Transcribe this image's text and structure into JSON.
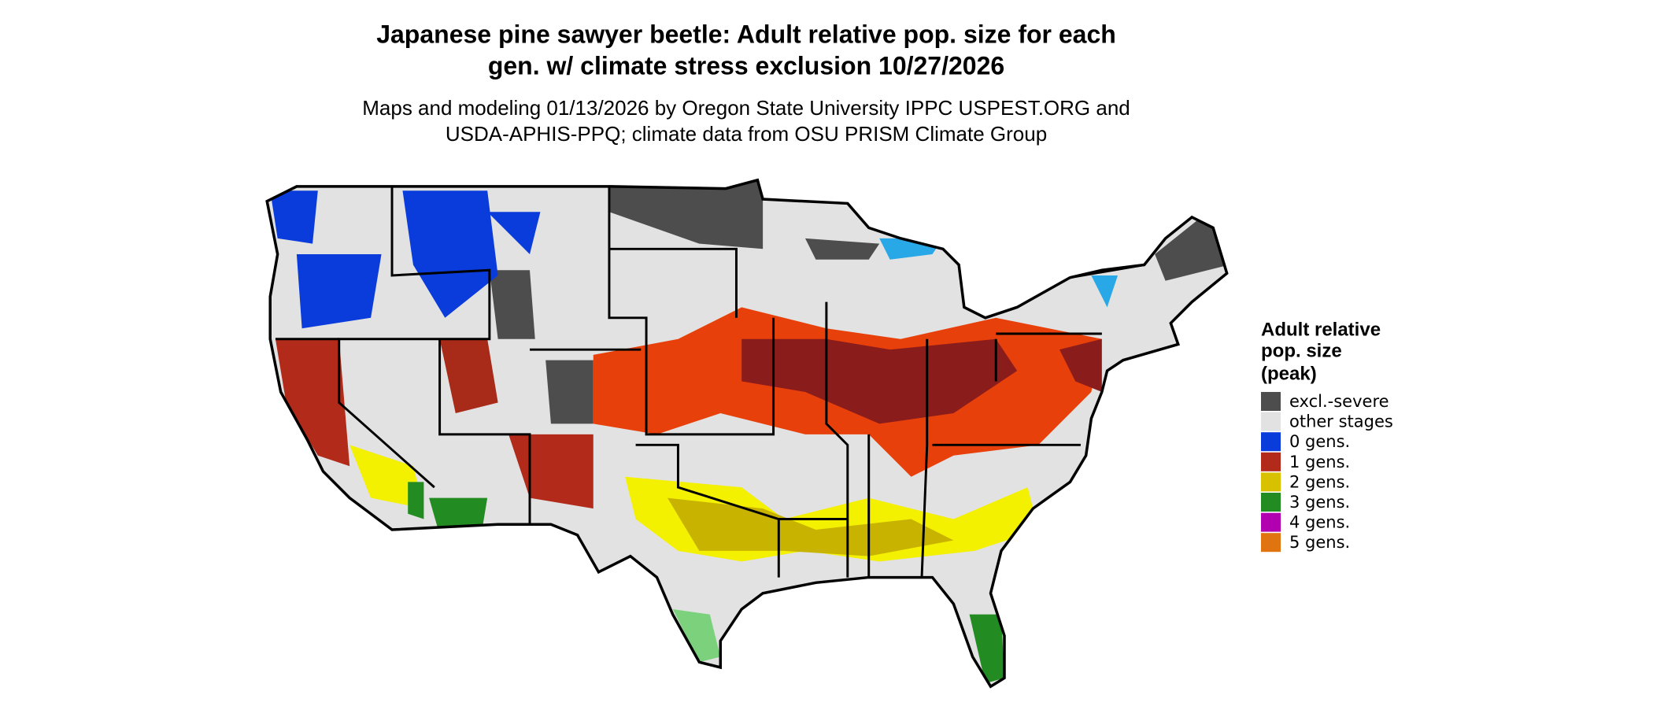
{
  "header": {
    "title": [
      "Japanese pine sawyer beetle: Adult relative pop. size for each",
      "gen. w/ climate stress exclusion 10/27/2026"
    ],
    "subtitle": [
      "Maps and modeling 01/13/2026 by Oregon State University IPPC USPEST.ORG and",
      "USDA-APHIS-PPQ; climate data from OSU PRISM Climate Group"
    ]
  },
  "legend": {
    "title": [
      "Adult relative",
      "pop. size",
      "(peak)"
    ],
    "items": [
      {
        "label": "excl.-severe",
        "color": "#4d4d4d"
      },
      {
        "label": "other stages",
        "color": "#e2e2e2"
      },
      {
        "label": "0 gens.",
        "color": "#0a3cdc"
      },
      {
        "label": "1 gens.",
        "color": "#b22a1a"
      },
      {
        "label": "2 gens.",
        "color": "#d8c200"
      },
      {
        "label": "3 gens.",
        "color": "#228b22"
      },
      {
        "label": "4 gens.",
        "color": "#b000b0"
      },
      {
        "label": "5 gens.",
        "color": "#e07410"
      }
    ]
  }
}
